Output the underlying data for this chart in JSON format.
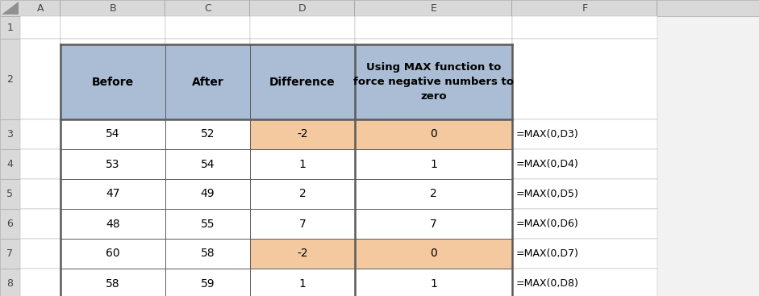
{
  "col_labels": [
    "A",
    "B",
    "C",
    "D",
    "E",
    "F"
  ],
  "row_labels": [
    "1",
    "2",
    "3",
    "4",
    "5",
    "6",
    "7",
    "8"
  ],
  "table_headers": [
    "Before",
    "After",
    "Difference",
    "Using MAX function to\nforce negative numbers to\nzero"
  ],
  "data_rows": [
    [
      54,
      52,
      -2,
      0
    ],
    [
      53,
      54,
      1,
      1
    ],
    [
      47,
      49,
      2,
      2
    ],
    [
      48,
      55,
      7,
      7
    ],
    [
      60,
      58,
      -2,
      0
    ],
    [
      58,
      59,
      1,
      1
    ]
  ],
  "formulas": [
    "=MAX(0,D3)",
    "=MAX(0,D4)",
    "=MAX(0,D5)",
    "=MAX(0,D6)",
    "=MAX(0,D7)",
    "=MAX(0,D8)"
  ],
  "header_bg": "#AABDD4",
  "highlight_bg": "#F5C9A0",
  "white_bg": "#FFFFFF",
  "border_color": "#5A5A5A",
  "thin_line_color": "#AAAAAA",
  "col_header_bg": "#D9D9D9",
  "row_header_bg": "#D9D9D9",
  "text_color": "#000000",
  "formula_color": "#000000",
  "fig_bg": "#F2F2F2"
}
